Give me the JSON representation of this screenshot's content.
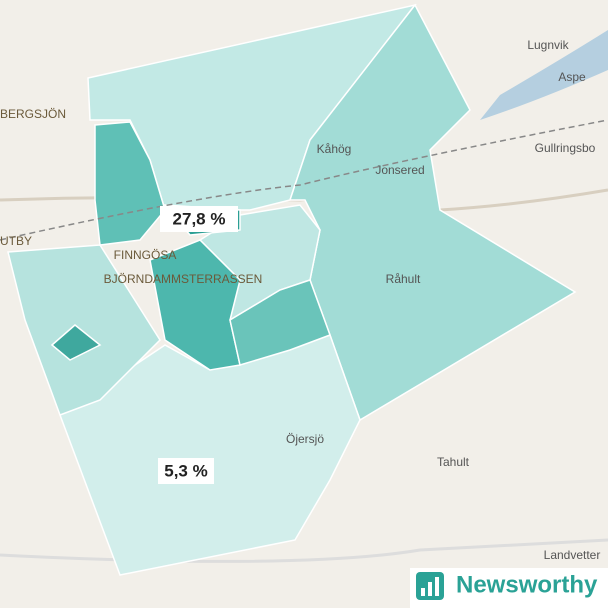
{
  "map": {
    "places": [
      "BERGSJÖN",
      "UTBY",
      "Lugnvik",
      "Aspe",
      "Gullringsbo",
      "Kåhög",
      "Jonsered",
      "Råhult",
      "FINNGÖSA",
      "BJÖRNDAMMSTERRASSEN",
      "Öjersjö",
      "Tahult",
      "Landvetter"
    ],
    "value_labels": [
      "27,8 %",
      "5,3 %"
    ],
    "logo": "Newsworthy"
  }
}
